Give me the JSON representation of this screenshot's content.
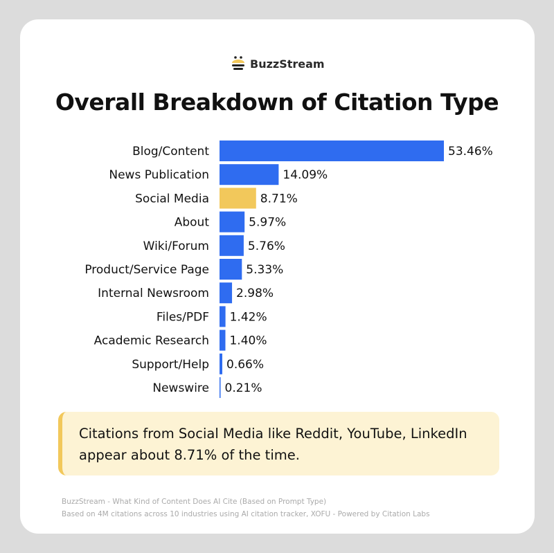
{
  "brand": {
    "name": "BuzzStream",
    "logo_icon": "bee-icon"
  },
  "chart_data": {
    "type": "bar",
    "orientation": "horizontal",
    "title": "Overall Breakdown of Citation Type",
    "categories": [
      "Blog/Content",
      "News Publication",
      "Social Media",
      "About",
      "Wiki/Forum",
      "Product/Service Page",
      "Internal Newsroom",
      "Files/PDF",
      "Academic Research",
      "Support/Help",
      "Newswire"
    ],
    "values": [
      53.46,
      14.09,
      8.71,
      5.97,
      5.76,
      5.33,
      2.98,
      1.42,
      1.4,
      0.66,
      0.21
    ],
    "data_labels": [
      "53.46%",
      "14.09%",
      "8.71%",
      "5.97%",
      "5.76%",
      "5.33%",
      "2.98%",
      "1.42%",
      "1.40%",
      "0.66%",
      "0.21%"
    ],
    "unit": "%",
    "highlight_category": "Social Media",
    "colors": {
      "default": "#2f6cf0",
      "highlight": "#f2c85b"
    },
    "grid": false,
    "legend": "none"
  },
  "callout": {
    "text": "Citations from Social Media like Reddit, YouTube, LinkedIn appear about 8.71% of the time."
  },
  "footer": {
    "line1": "BuzzStream - What Kind of Content Does AI Cite (Based on Prompt Type)",
    "line2": "Based on 4M citations across 10 industries using AI citation tracker, XOFU - Powered by Citation Labs"
  }
}
